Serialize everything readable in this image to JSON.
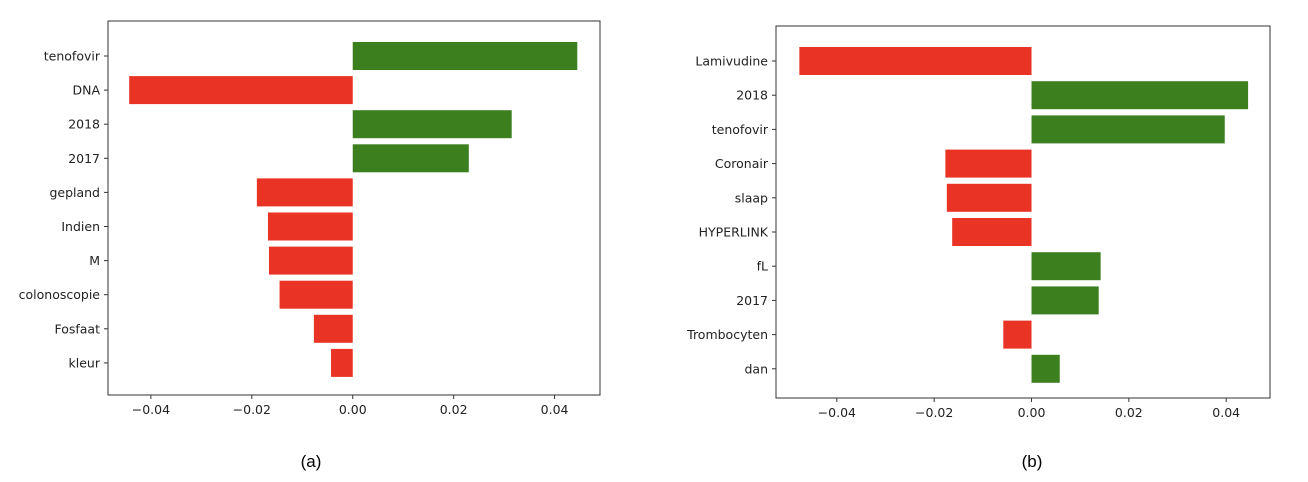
{
  "colors": {
    "positive": "#3b7f1f",
    "negative": "#e93325"
  },
  "chart_data": [
    {
      "type": "bar",
      "orientation": "horizontal",
      "caption": "(a)",
      "categories": [
        "tenofovir",
        "DNA",
        "2018",
        "2017",
        "gepland",
        "Indien",
        "M",
        "colonoscopie",
        "Fosfaat",
        "kleur"
      ],
      "values": [
        0.0445,
        -0.0443,
        0.0315,
        0.023,
        -0.019,
        -0.0168,
        -0.0166,
        -0.0145,
        -0.0077,
        -0.0043
      ],
      "xlim": [
        -0.0485,
        0.049
      ],
      "xticks": [
        -0.04,
        -0.02,
        0.0,
        0.02,
        0.04
      ],
      "xtick_labels": [
        "−0.04",
        "−0.02",
        "0.00",
        "0.02",
        "0.04"
      ],
      "xlabel": "",
      "ylabel": "",
      "title": "",
      "grid": false
    },
    {
      "type": "bar",
      "orientation": "horizontal",
      "caption": "(b)",
      "categories": [
        "Lamivudine",
        "2018",
        "tenofovir",
        "Coronair",
        "slaap",
        "HYPERLINK",
        "fL",
        "2017",
        "Trombocyten",
        "dan"
      ],
      "values": [
        -0.0477,
        0.0445,
        0.0397,
        -0.0177,
        -0.0174,
        -0.0163,
        0.0142,
        0.0138,
        -0.0058,
        0.0058
      ],
      "xlim": [
        -0.0525,
        0.049
      ],
      "xticks": [
        -0.04,
        -0.02,
        0.0,
        0.02,
        0.04
      ],
      "xtick_labels": [
        "−0.04",
        "−0.02",
        "0.00",
        "0.02",
        "0.04"
      ],
      "xlabel": "",
      "ylabel": "",
      "title": "",
      "grid": false
    }
  ]
}
